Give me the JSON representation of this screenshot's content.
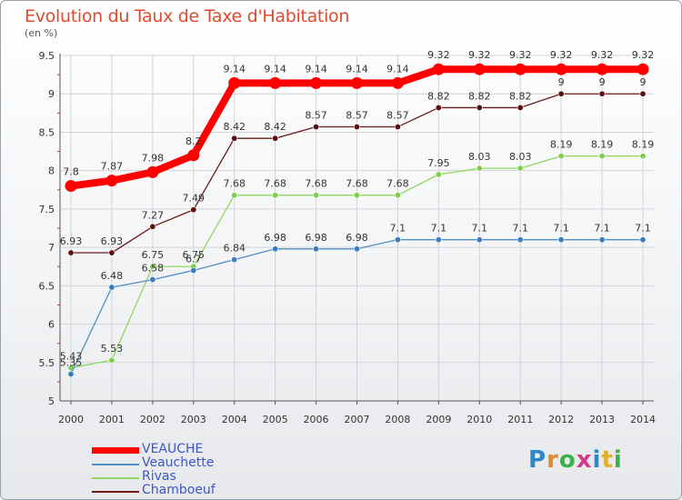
{
  "title": "Evolution du Taux de Taxe d'Habitation",
  "unit_label": "(en %)",
  "logo_text": "Proxiti",
  "chart_data": {
    "type": "line",
    "title": "Evolution du Taux de Taxe d'Habitation",
    "ylabel": "(en %)",
    "xlabel": "",
    "x": [
      "2000",
      "2001",
      "2002",
      "2003",
      "2004",
      "2005",
      "2006",
      "2007",
      "2008",
      "2009",
      "2010",
      "2011",
      "2012",
      "2013",
      "2014"
    ],
    "ylim": [
      5,
      9.5
    ],
    "yticks": [
      "5",
      "5.5",
      "6",
      "6.5",
      "7",
      "7.5",
      "8",
      "8.5",
      "9",
      "9.5"
    ],
    "grid": true,
    "legend_position": "bottom-left",
    "series": [
      {
        "name": "VEAUCHE",
        "color": "#ff0000",
        "values": [
          7.8,
          7.87,
          7.98,
          8.2,
          9.14,
          9.14,
          9.14,
          9.14,
          9.14,
          9.32,
          9.32,
          9.32,
          9.32,
          9.32,
          9.32
        ],
        "labels": [
          "7.8",
          "7.87",
          "7.98",
          "8.2",
          "9.14",
          "9.14",
          "9.14",
          "9.14",
          "9.14",
          "9.32",
          "9.32",
          "9.32",
          "9.32",
          "9.32",
          "9.32"
        ]
      },
      {
        "name": "Veauchette",
        "color": "#4f8fc9",
        "values": [
          5.35,
          6.48,
          6.58,
          6.7,
          6.84,
          6.98,
          6.98,
          6.98,
          7.1,
          7.1,
          7.1,
          7.1,
          7.1,
          7.1,
          7.1
        ],
        "labels": [
          "5.35",
          "6.48",
          "6.58",
          "6.7",
          "6.84",
          "6.98",
          "6.98",
          "6.98",
          "7.1",
          "7.1",
          "7.1",
          "7.1",
          "7.1",
          "7.1",
          "7.1"
        ]
      },
      {
        "name": "Rivas",
        "color": "#8fd85f",
        "values": [
          5.43,
          5.53,
          6.75,
          6.75,
          7.68,
          7.68,
          7.68,
          7.68,
          7.68,
          7.95,
          8.03,
          8.03,
          8.19,
          8.19,
          8.19
        ],
        "labels": [
          "5.43",
          "5.53",
          "6.75",
          "6.75",
          "7.68",
          "7.68",
          "7.68",
          "7.68",
          "7.68",
          "7.95",
          "8.03",
          "8.03",
          "8.19",
          "8.19",
          "8.19"
        ]
      },
      {
        "name": "Chamboeuf",
        "color": "#6b1a1a",
        "values": [
          6.93,
          6.93,
          7.27,
          7.49,
          8.42,
          8.42,
          8.57,
          8.57,
          8.57,
          8.82,
          8.82,
          8.82,
          9,
          9,
          9
        ],
        "labels": [
          "6.93",
          "6.93",
          "7.27",
          "7.49",
          "8.42",
          "8.42",
          "8.57",
          "8.57",
          "8.57",
          "8.82",
          "8.82",
          "8.82",
          "9",
          "9",
          "9"
        ]
      }
    ]
  }
}
